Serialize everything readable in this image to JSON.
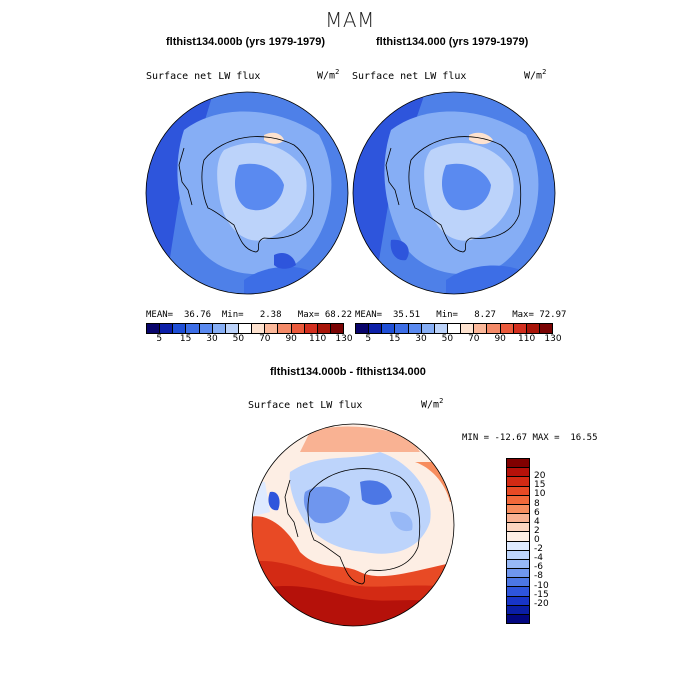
{
  "season_title": "MAM",
  "panels": [
    {
      "title": "flthist134.000b (yrs 1979-1979)",
      "field_label": "Surface net LW flux",
      "unit_base": "W/m",
      "unit_exp": "2",
      "stats": {
        "mean_label": "MEAN=",
        "mean": "36.76",
        "min_label": "Min=",
        "min": "2.38",
        "max_label": "Max=",
        "max": "68.22"
      }
    },
    {
      "title": "flthist134.000 (yrs 1979-1979)",
      "field_label": "Surface net LW flux",
      "unit_base": "W/m",
      "unit_exp": "2",
      "stats": {
        "mean_label": "MEAN=",
        "mean": "35.51",
        "min_label": "Min=",
        "min": "8.27",
        "max_label": "Max=",
        "max": "72.97"
      }
    }
  ],
  "colorbar_top": {
    "colors": [
      "#08046b",
      "#0c1fa8",
      "#1f4fd6",
      "#3d6ee6",
      "#5a8af0",
      "#86aef5",
      "#bcd3fa",
      "#ffffff",
      "#fde2cf",
      "#fbb89a",
      "#f48a68",
      "#ea5a3c",
      "#d22f1f",
      "#a81509",
      "#7a0303"
    ],
    "ticks": [
      "5",
      "15",
      "30",
      "50",
      "70",
      "90",
      "110",
      "130"
    ]
  },
  "diff_panel": {
    "title": "flthist134.000b - flthist134.000",
    "field_label": "Surface net LW flux",
    "unit_base": "W/m",
    "unit_exp": "2",
    "min_label": "MIN =",
    "min": "-12.67",
    "max_label": "MAX =",
    "max": "16.55",
    "colors": [
      "#800000",
      "#b5110a",
      "#d32a14",
      "#e84a25",
      "#f2693a",
      "#f78d5e",
      "#f9b293",
      "#fcd5c0",
      "#fdeee4",
      "#deeaff",
      "#bdd4fb",
      "#97b8f6",
      "#6f96ee",
      "#4c77e5",
      "#2e55dc",
      "#1835c8",
      "#0a1ea6",
      "#020680"
    ],
    "ticks": [
      "20",
      "15",
      "10",
      "8",
      "6",
      "4",
      "2",
      "0",
      "-2",
      "-4",
      "-6",
      "-8",
      "-10",
      "-15",
      "-20"
    ]
  },
  "map_palette": {
    "ocean_top": "#4e80e8",
    "ice_top": "#86aef5",
    "warm": "#ea5a3c",
    "cool": "#2e55dc",
    "coast": "#000000"
  }
}
